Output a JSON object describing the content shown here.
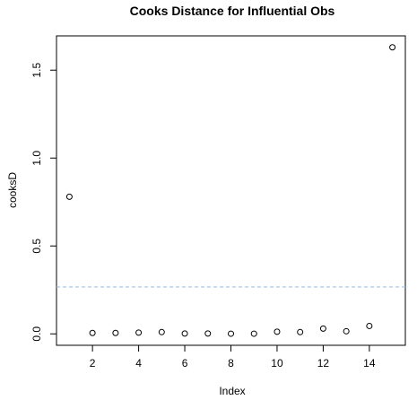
{
  "chart_data": {
    "type": "scatter",
    "title": "Cooks Distance for Influential Obs",
    "xlabel": "Index",
    "ylabel": "cooksD",
    "x": [
      1,
      2,
      3,
      4,
      5,
      6,
      7,
      8,
      9,
      10,
      11,
      12,
      13,
      14,
      15
    ],
    "y": [
      0.78,
      0.005,
      0.005,
      0.007,
      0.01,
      0.002,
      0.002,
      0.001,
      0.001,
      0.012,
      0.01,
      0.03,
      0.015,
      0.045,
      1.63
    ],
    "xlim": [
      0.44,
      15.56
    ],
    "ylim": [
      -0.065,
      1.695
    ],
    "xticks": [
      2,
      4,
      6,
      8,
      10,
      12,
      14
    ],
    "yticks": [
      0.0,
      0.5,
      1.0,
      1.5
    ],
    "ytick_labels": [
      "0.0",
      "0.5",
      "1.0",
      "1.5"
    ],
    "reference_line": {
      "y": 0.267,
      "color": "#9ec3e6",
      "style": "dashed"
    },
    "grid": false,
    "colors": {
      "points": "#000000",
      "frame": "#000000"
    }
  }
}
